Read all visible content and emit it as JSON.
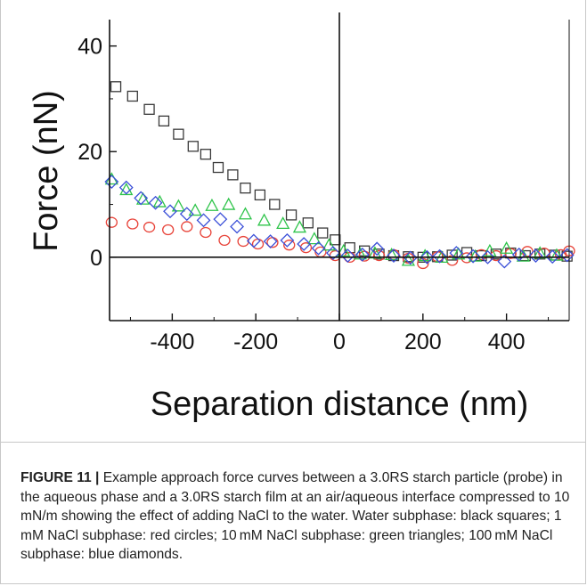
{
  "figure": {
    "label": "FIGURE 11 |",
    "caption": " Example approach force curves between a 3.0RS starch particle (probe) in the aqueous phase and a 3.0RS starch film at an air/aqueous interface compressed to 10 mN/m showing the effect of adding NaCl to the water. Water subphase: black squares; 1 mM NaCl subphase: red circles; 10 mM NaCl subphase: green triangles; 100 mM NaCl subphase: blue diamonds."
  },
  "chart_data": {
    "type": "scatter",
    "title": "",
    "xlabel": "Separation distance (nm)",
    "ylabel": "Force (nN)",
    "xlim": [
      -550,
      550
    ],
    "ylim": [
      -12,
      45
    ],
    "xticks": [
      -400,
      -200,
      0,
      200,
      400
    ],
    "yticks": [
      0,
      20,
      40
    ],
    "xtick_labels": [
      "-400",
      "-200",
      "0",
      "200",
      "400"
    ],
    "ytick_labels": [
      "0",
      "20",
      "40"
    ],
    "grid": false,
    "series": [
      {
        "marker": "square",
        "color": "#3a3a3a",
        "x": [
          -535,
          -495,
          -455,
          -420,
          -385,
          -350,
          -320,
          -290,
          -255,
          -225,
          -190,
          -155,
          -115,
          -75,
          -40,
          -10,
          25,
          60,
          95,
          130,
          165,
          200,
          235,
          270,
          305,
          340,
          375,
          410,
          445,
          480,
          515,
          545
        ],
        "y": [
          32.3,
          30.5,
          28.0,
          25.8,
          23.3,
          21.0,
          19.5,
          17.0,
          15.6,
          13.1,
          11.8,
          10.0,
          8.0,
          6.5,
          4.6,
          3.3,
          1.8,
          1.2,
          0.6,
          0.3,
          0.1,
          0.0,
          0.1,
          0.4,
          0.9,
          0.3,
          0.6,
          0.8,
          0.3,
          0.6,
          0.4,
          0.2
        ]
      },
      {
        "marker": "circle",
        "color": "#e8443a",
        "x": [
          -545,
          -495,
          -455,
          -410,
          -365,
          -320,
          -275,
          -230,
          -195,
          -160,
          -120,
          -80,
          -45,
          -10,
          25,
          60,
          95,
          130,
          165,
          200,
          235,
          270,
          305,
          340,
          375,
          410,
          450,
          490,
          530,
          550
        ],
        "y": [
          6.6,
          6.3,
          5.7,
          5.2,
          5.8,
          4.7,
          3.2,
          3.0,
          2.5,
          2.8,
          2.3,
          1.8,
          1.0,
          0.3,
          0.0,
          0.2,
          0.3,
          0.5,
          -0.2,
          -1.2,
          0.1,
          -0.6,
          -0.1,
          0.5,
          0.3,
          0.7,
          1.1,
          0.8,
          0.5,
          1.2
        ]
      },
      {
        "marker": "triangle",
        "color": "#2ec44a",
        "x": [
          -545,
          -510,
          -470,
          -430,
          -385,
          -345,
          -305,
          -265,
          -225,
          -180,
          -135,
          -95,
          -60,
          -25,
          10,
          50,
          85,
          125,
          165,
          205,
          245,
          285,
          325,
          360,
          400,
          440,
          480,
          520
        ],
        "y": [
          14.8,
          12.8,
          11.0,
          10.5,
          9.7,
          8.9,
          9.8,
          10.0,
          8.2,
          7.0,
          6.4,
          5.7,
          3.5,
          2.3,
          1.2,
          0.6,
          0.8,
          0.5,
          -0.6,
          0.3,
          0.0,
          0.6,
          0.2,
          1.2,
          1.7,
          0.2,
          0.8,
          0.4
        ]
      },
      {
        "marker": "diamond",
        "color": "#3a4fd8",
        "x": [
          -545,
          -510,
          -475,
          -440,
          -405,
          -365,
          -325,
          -285,
          -245,
          -205,
          -165,
          -125,
          -85,
          -50,
          -15,
          20,
          55,
          90,
          130,
          170,
          210,
          240,
          280,
          320,
          355,
          395,
          430,
          470,
          510,
          545
        ],
        "y": [
          14.3,
          13.2,
          11.2,
          10.3,
          8.7,
          8.2,
          7.0,
          7.2,
          5.8,
          3.1,
          3.0,
          3.2,
          2.5,
          1.7,
          0.8,
          0.3,
          0.5,
          1.6,
          0.3,
          -0.1,
          0.0,
          0.2,
          0.8,
          0.2,
          0.0,
          -0.8,
          0.5,
          0.3,
          0.1,
          0.4
        ]
      }
    ]
  }
}
